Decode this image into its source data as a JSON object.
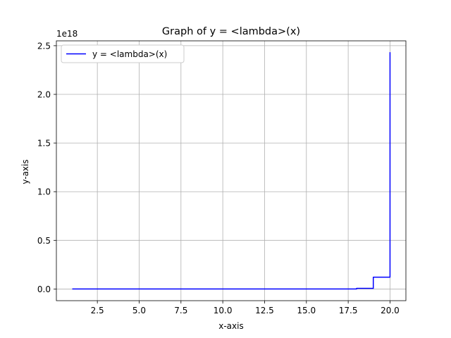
{
  "chart_data": {
    "type": "line",
    "title": "Graph of y = <lambda>(x)",
    "xlabel": "x-axis",
    "ylabel": "y-axis",
    "y_offset_label": "1e18",
    "xlim": [
      0.05,
      20.95
    ],
    "ylim": [
      -0.12,
      2.55
    ],
    "x_ticks": [
      2.5,
      5.0,
      7.5,
      10.0,
      12.5,
      15.0,
      17.5,
      20.0
    ],
    "x_tick_labels": [
      "2.5",
      "5.0",
      "7.5",
      "10.0",
      "12.5",
      "15.0",
      "17.5",
      "20.0"
    ],
    "y_ticks": [
      0.0,
      0.5,
      1.0,
      1.5,
      2.0,
      2.5
    ],
    "y_tick_labels": [
      "0.0",
      "0.5",
      "1.0",
      "1.5",
      "2.0",
      "2.5"
    ],
    "grid": true,
    "legend_position": "top-left",
    "series": [
      {
        "name": "y = <lambda>(x)",
        "color": "#0000ff",
        "x": [
          1,
          17,
          18,
          19,
          20
        ],
        "y_scaled_1e18": [
          0.0,
          0.000355687428096,
          0.006402373705728,
          0.121645100408832,
          2.43290200817664
        ]
      }
    ]
  }
}
